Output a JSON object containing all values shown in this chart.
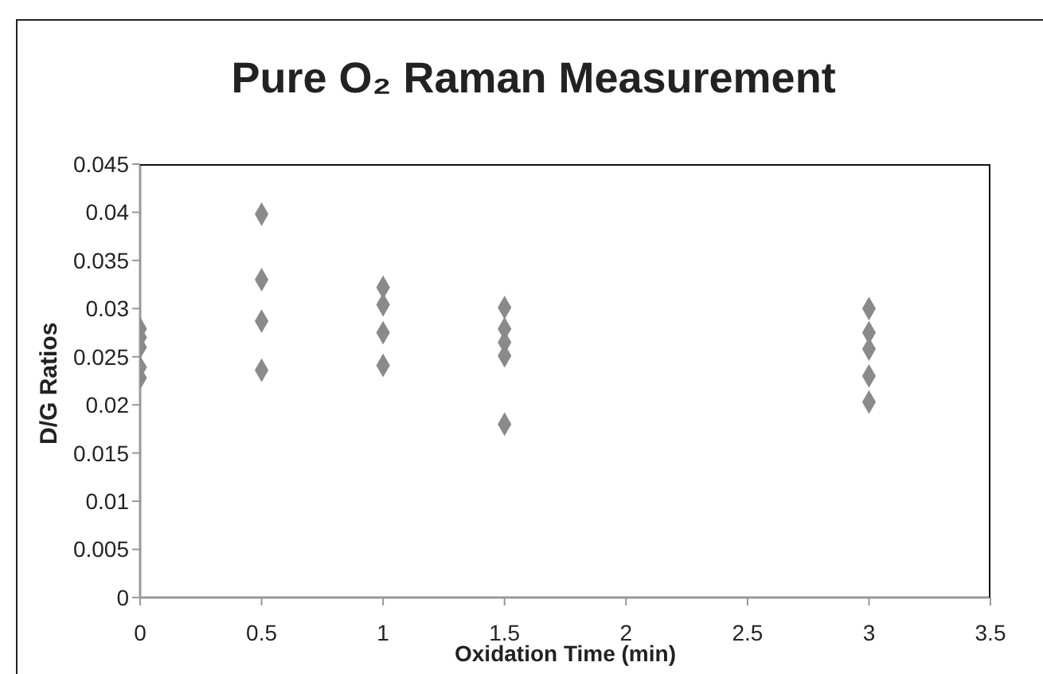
{
  "chart_data": {
    "type": "scatter",
    "title": "Pure O₂ Raman Measurement",
    "xlabel": "Oxidation Time (min)",
    "ylabel": "D/G Ratios",
    "x": [
      0,
      0,
      0,
      0,
      0,
      0.5,
      0.5,
      0.5,
      0.5,
      1,
      1,
      1,
      1,
      1.5,
      1.5,
      1.5,
      1.5,
      1.5,
      3,
      3,
      3,
      3,
      3
    ],
    "values": [
      0.0279,
      0.027,
      0.026,
      0.0239,
      0.0228,
      0.0398,
      0.033,
      0.0287,
      0.0236,
      0.0322,
      0.0304,
      0.0275,
      0.0241,
      0.0301,
      0.0279,
      0.0265,
      0.0251,
      0.018,
      0.03,
      0.0275,
      0.0258,
      0.023,
      0.0203
    ],
    "color": "#8a8a8c",
    "marker": "diamond",
    "xlim": [
      0,
      3.5
    ],
    "xticks": [
      0,
      0.5,
      1,
      1.5,
      2,
      2.5,
      3,
      3.5
    ],
    "ylim": [
      0,
      0.045
    ],
    "yticks": [
      0,
      0.005,
      0.01,
      0.015,
      0.02,
      0.025,
      0.03,
      0.035,
      0.04,
      0.045
    ]
  }
}
